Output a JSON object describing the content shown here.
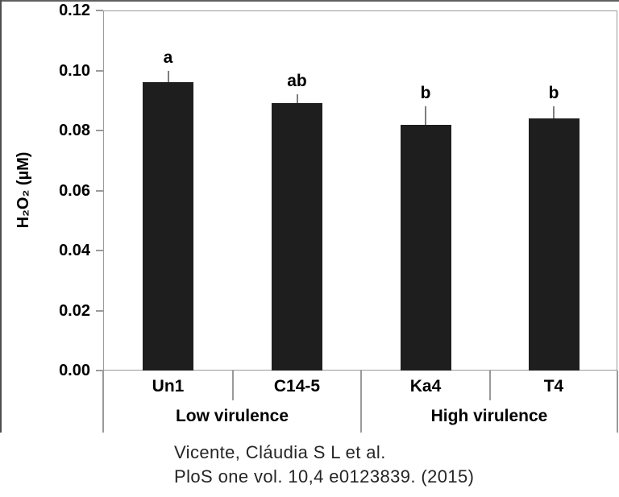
{
  "chart_data": {
    "type": "bar",
    "title": "",
    "xlabel": "",
    "ylabel": "H₂O₂ (µM)",
    "categories": [
      "Un1",
      "C14-5",
      "Ka4",
      "T4"
    ],
    "values": [
      0.096,
      0.089,
      0.082,
      0.084
    ],
    "errors": [
      0.004,
      0.003,
      0.006,
      0.004
    ],
    "significance_letters": [
      "a",
      "ab",
      "b",
      "b"
    ],
    "groups": [
      {
        "label": "Low virulence",
        "categories": [
          "Un1",
          "C14-5"
        ]
      },
      {
        "label": "High virulence",
        "categories": [
          "Ka4",
          "T4"
        ]
      }
    ],
    "ylim": [
      0,
      0.12
    ],
    "yticks": [
      "0.00",
      "0.02",
      "0.04",
      "0.06",
      "0.08",
      "0.10",
      "0.12"
    ],
    "ytick_values": [
      0,
      0.02,
      0.04,
      0.06,
      0.08,
      0.1,
      0.12
    ],
    "grid": false,
    "legend": false,
    "error_bars": true,
    "colors": {
      "bar": "#1e1e1e",
      "axis": "#9a9a9a",
      "error_bar": "#7d7d7d",
      "text": "#000000",
      "frame": "#5a5a5a"
    }
  },
  "citation": {
    "line1": "Vicente, Cláudia S L et al.",
    "line2": "PloS one vol. 10,4 e0123839. (2015)"
  }
}
